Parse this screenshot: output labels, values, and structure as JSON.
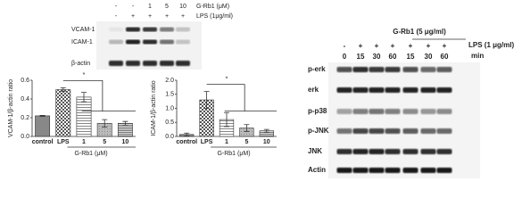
{
  "left_blot": {
    "grb1_label": "G-Rb1 (μM)",
    "lps_label": "LPS (1μg/ml)",
    "grb1": [
      "-",
      "-",
      "1",
      "5",
      "10"
    ],
    "lps": [
      "-",
      "+",
      "+",
      "+",
      "+"
    ],
    "rows": [
      "VCAM-1",
      "ICAM-1",
      "β-actin"
    ]
  },
  "chart_data": [
    {
      "type": "bar",
      "y_label": "VCAM-1/β-actin ratio",
      "x_label": "G-Rb1 (μM)",
      "annotation": "*",
      "categories": [
        "control",
        "LPS",
        "1",
        "5",
        "10"
      ],
      "values": [
        0.22,
        0.5,
        0.42,
        0.14,
        0.14
      ],
      "errors": [
        0.005,
        0.02,
        0.05,
        0.04,
        0.02
      ],
      "ylim": [
        0,
        0.6
      ],
      "yticks": [
        {
          "value": 0,
          "label": "0.0"
        },
        {
          "value": 0.2,
          "label": "0.2"
        },
        {
          "value": 0.4,
          "label": "0.4"
        },
        {
          "value": 0.6,
          "label": "0.6"
        }
      ]
    },
    {
      "type": "bar",
      "y_label": "ICAM-1/β-actin ratio",
      "x_label": "G-Rb1 (μM)",
      "annotation": "*",
      "categories": [
        "control",
        "LPS",
        "1",
        "5",
        "10"
      ],
      "values": [
        0.07,
        1.3,
        0.6,
        0.3,
        0.2
      ],
      "errors": [
        0.05,
        0.3,
        0.25,
        0.12,
        0.05
      ],
      "ylim": [
        0,
        2
      ],
      "yticks": [
        {
          "value": 0,
          "label": "0.0"
        },
        {
          "value": 0.5,
          "label": "0.5"
        },
        {
          "value": 1,
          "label": "1.0"
        },
        {
          "value": 1.5,
          "label": "1.5"
        },
        {
          "value": 2,
          "label": "2.0"
        }
      ]
    }
  ],
  "right_blot": {
    "treatment_label": "G-Rb1 (5 μg/ml)",
    "lps_label": "LPS (1 μg/ml)",
    "time_label": "min",
    "lps": [
      "-",
      "+",
      "+",
      "+",
      "+",
      "+",
      "+"
    ],
    "time": [
      "0",
      "15",
      "30",
      "60",
      "15",
      "30",
      "60"
    ],
    "rows": [
      "p-erk",
      "erk",
      "p-p38",
      "p-JNK",
      "JNK",
      "Actin"
    ]
  }
}
